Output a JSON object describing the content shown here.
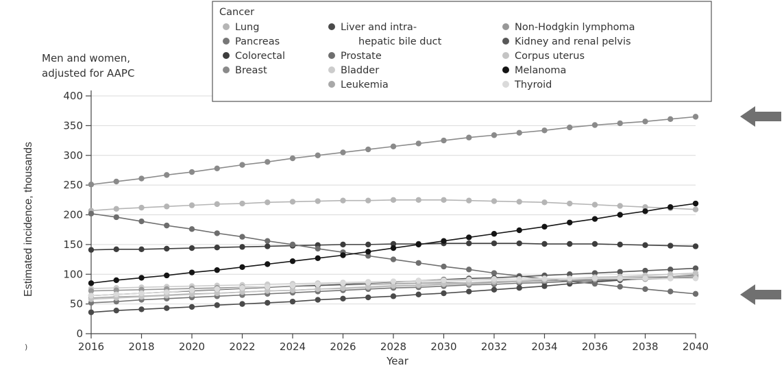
{
  "chart_data": {
    "type": "line",
    "subtitle_lines": [
      "Men and women,",
      "adjusted for AAPC"
    ],
    "corner_label": ")",
    "xlabel": "Year",
    "ylabel": "Estimated incidence, thousands",
    "xlim": [
      2016,
      2040
    ],
    "ylim": [
      0,
      400
    ],
    "x_ticks": [
      "2016",
      "2018",
      "2020",
      "2022",
      "2024",
      "2026",
      "2028",
      "2030",
      "2032",
      "2034",
      "2036",
      "2038",
      "2040"
    ],
    "y_ticks": [
      "0",
      "50",
      "100",
      "150",
      "200",
      "250",
      "300",
      "350",
      "400"
    ],
    "grid": "horizontal",
    "legend": {
      "title": "Cancer",
      "placement": "top",
      "columns": [
        [
          {
            "label": "Lung",
            "series": 0
          },
          {
            "label": "Pancreas",
            "series": 1
          },
          {
            "label": "Colorectal",
            "series": 2
          },
          {
            "label": "Breast",
            "series": 3
          }
        ],
        [
          {
            "label": "Liver and intra-",
            "label2": "hepatic bile duct",
            "series": 4
          },
          {
            "label": "Prostate",
            "series": 5
          },
          {
            "label": "Bladder",
            "series": 6
          },
          {
            "label": "Leukemia",
            "series": 7
          }
        ],
        [
          {
            "label": "Non-Hodgkin lymphoma",
            "series": 8
          },
          {
            "label": "Kidney and renal pelvis",
            "series": 9
          },
          {
            "label": "Corpus uterus",
            "series": 10
          },
          {
            "label": "Melanoma",
            "series": 11
          },
          {
            "label": "Thyroid",
            "series": 12
          }
        ]
      ]
    },
    "x": [
      2016,
      2017,
      2018,
      2019,
      2020,
      2021,
      2022,
      2023,
      2024,
      2025,
      2026,
      2027,
      2028,
      2029,
      2030,
      2031,
      2032,
      2033,
      2034,
      2035,
      2036,
      2037,
      2038,
      2039,
      2040
    ],
    "series": [
      {
        "name": "Lung",
        "color": "#b5b5b5",
        "values": [
          207,
          210,
          212,
          214,
          216,
          218,
          219,
          221,
          222,
          223,
          224,
          224,
          225,
          225,
          225,
          224,
          223,
          222,
          221,
          219,
          217,
          215,
          213,
          211,
          209
        ]
      },
      {
        "name": "Pancreas",
        "color": "#777777",
        "values": [
          52,
          54,
          57,
          59,
          61,
          63,
          65,
          67,
          69,
          71,
          73,
          75,
          77,
          78,
          80,
          82,
          83,
          85,
          86,
          88,
          89,
          91,
          92,
          94,
          96
        ]
      },
      {
        "name": "Colorectal",
        "color": "#3d3d3d",
        "values": [
          141,
          142,
          142,
          143,
          144,
          145,
          146,
          147,
          148,
          149,
          150,
          150,
          151,
          151,
          152,
          152,
          152,
          152,
          151,
          151,
          151,
          150,
          149,
          148,
          147
        ]
      },
      {
        "name": "Breast",
        "color": "#8a8a8a",
        "values": [
          251,
          256,
          261,
          267,
          272,
          278,
          284,
          289,
          295,
          300,
          305,
          310,
          315,
          320,
          325,
          330,
          334,
          338,
          342,
          347,
          351,
          354,
          357,
          361,
          365
        ]
      },
      {
        "name": "Liver and intrahepatic bile duct",
        "color": "#4a4a4a",
        "values": [
          36,
          39,
          41,
          43,
          45,
          48,
          50,
          52,
          54,
          57,
          59,
          61,
          63,
          66,
          68,
          71,
          74,
          77,
          80,
          84,
          87,
          90,
          93,
          96,
          99
        ]
      },
      {
        "name": "Prostate",
        "color": "#6e6e6e",
        "values": [
          202,
          196,
          189,
          182,
          176,
          169,
          163,
          156,
          150,
          143,
          137,
          131,
          125,
          119,
          113,
          108,
          102,
          97,
          92,
          88,
          84,
          79,
          75,
          71,
          67
        ]
      },
      {
        "name": "Bladder",
        "color": "#cccccc",
        "values": [
          76,
          77,
          78,
          79,
          80,
          81,
          82,
          83,
          84,
          85,
          86,
          87,
          88,
          88,
          89,
          90,
          91,
          92,
          92,
          93,
          94,
          95,
          96,
          96,
          97
        ]
      },
      {
        "name": "Leukemia",
        "color": "#a8a8a8",
        "values": [
          60,
          62,
          63,
          65,
          67,
          68,
          70,
          72,
          73,
          75,
          76,
          78,
          80,
          81,
          83,
          84,
          86,
          88,
          89,
          90,
          92,
          93,
          95,
          96,
          98
        ]
      },
      {
        "name": "Non-Hodgkin lymphoma",
        "color": "#989898",
        "values": [
          72,
          73,
          74,
          75,
          76,
          77,
          78,
          79,
          80,
          81,
          82,
          83,
          84,
          85,
          86,
          86,
          87,
          88,
          89,
          90,
          91,
          92,
          92,
          93,
          94
        ]
      },
      {
        "name": "Kidney and renal pelvis",
        "color": "#585858",
        "values": [
          64,
          66,
          68,
          70,
          72,
          74,
          76,
          78,
          80,
          81,
          83,
          85,
          87,
          89,
          91,
          93,
          94,
          96,
          98,
          100,
          102,
          104,
          106,
          108,
          110
        ]
      },
      {
        "name": "Corpus uterus",
        "color": "#c4c4c4",
        "values": [
          58,
          60,
          62,
          64,
          66,
          68,
          70,
          72,
          73,
          75,
          77,
          79,
          81,
          82,
          84,
          86,
          88,
          89,
          91,
          93,
          95,
          96,
          98,
          100,
          102
        ]
      },
      {
        "name": "Melanoma",
        "color": "#141414",
        "values": [
          85,
          90,
          94,
          98,
          103,
          107,
          112,
          117,
          122,
          127,
          132,
          138,
          144,
          150,
          156,
          162,
          168,
          174,
          180,
          187,
          193,
          200,
          206,
          213,
          219
        ]
      },
      {
        "name": "Thyroid",
        "color": "#dadada",
        "values": [
          64,
          66,
          68,
          70,
          73,
          75,
          77,
          79,
          81,
          83,
          85,
          86,
          88,
          89,
          90,
          91,
          92,
          92,
          93,
          93,
          93,
          93,
          93,
          93,
          93
        ]
      }
    ]
  }
}
